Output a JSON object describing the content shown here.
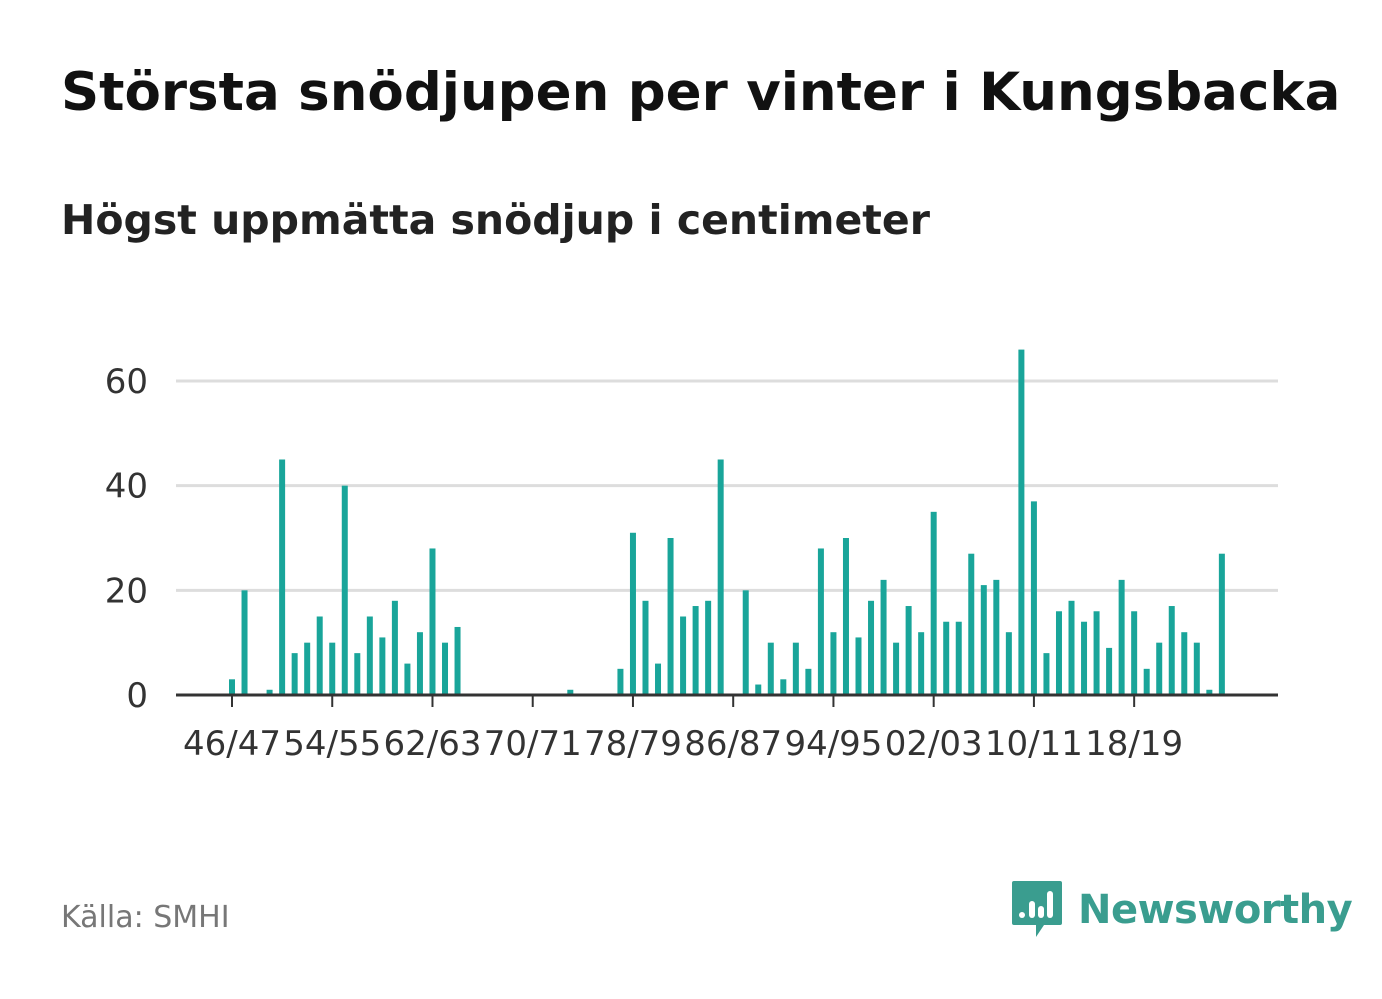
{
  "title": "Största snödjupen per vinter i Kungsbacka",
  "subtitle": "Högst uppmätta snödjup i centimeter",
  "source": "Källa: SMHI",
  "logo": {
    "text": "Newsworthy",
    "icon": "newsworthy-logo-icon",
    "color": "#3a9d8f"
  },
  "colors": {
    "bar": "#19a59a",
    "grid": "#dddddd",
    "axis": "#333333",
    "text": "#333333"
  },
  "chart_data": {
    "type": "bar",
    "title": "Största snödjupen per vinter i Kungsbacka",
    "ylabel": "",
    "xlabel": "",
    "ylim": [
      0,
      70
    ],
    "yticks": [
      0,
      20,
      40,
      60
    ],
    "grid": true,
    "categories": [
      "46/47",
      "47/48",
      "48/49",
      "49/50",
      "50/51",
      "51/52",
      "52/53",
      "53/54",
      "54/55",
      "55/56",
      "56/57",
      "57/58",
      "58/59",
      "59/60",
      "60/61",
      "61/62",
      "62/63",
      "63/64",
      "64/65",
      "65/66",
      "66/67",
      "67/68",
      "68/69",
      "69/70",
      "70/71",
      "71/72",
      "72/73",
      "73/74",
      "74/75",
      "75/76",
      "76/77",
      "77/78",
      "78/79",
      "79/80",
      "80/81",
      "81/82",
      "82/83",
      "83/84",
      "84/85",
      "85/86",
      "86/87",
      "87/88",
      "88/89",
      "89/90",
      "90/91",
      "91/92",
      "92/93",
      "93/94",
      "94/95",
      "95/96",
      "96/97",
      "97/98",
      "98/99",
      "99/00",
      "00/01",
      "01/02",
      "02/03",
      "03/04",
      "04/05",
      "05/06",
      "06/07",
      "07/08",
      "08/09",
      "09/10",
      "10/11",
      "11/12",
      "12/13",
      "13/14",
      "14/15",
      "15/16",
      "16/17",
      "17/18",
      "18/19",
      "19/20",
      "20/21",
      "21/22",
      "22/23",
      "23/24",
      "24/25",
      "25/26"
    ],
    "values": [
      3,
      20,
      null,
      1,
      45,
      8,
      10,
      15,
      10,
      40,
      8,
      15,
      11,
      18,
      6,
      12,
      28,
      10,
      13,
      null,
      null,
      null,
      null,
      null,
      null,
      null,
      null,
      1,
      null,
      null,
      null,
      5,
      31,
      18,
      6,
      30,
      15,
      17,
      18,
      45,
      null,
      20,
      2,
      10,
      3,
      10,
      5,
      28,
      12,
      30,
      11,
      18,
      22,
      10,
      17,
      12,
      35,
      14,
      14,
      27,
      21,
      22,
      12,
      66,
      37,
      8,
      16,
      18,
      14,
      16,
      9,
      22,
      16,
      5,
      10,
      17,
      12,
      10,
      1,
      27
    ],
    "xtick_labels": [
      "46/47",
      "54/55",
      "62/63",
      "70/71",
      "78/79",
      "86/87",
      "94/95",
      "02/03",
      "10/11",
      "18/19"
    ],
    "xtick_indices": [
      0,
      8,
      16,
      24,
      32,
      40,
      48,
      56,
      64,
      72
    ]
  }
}
